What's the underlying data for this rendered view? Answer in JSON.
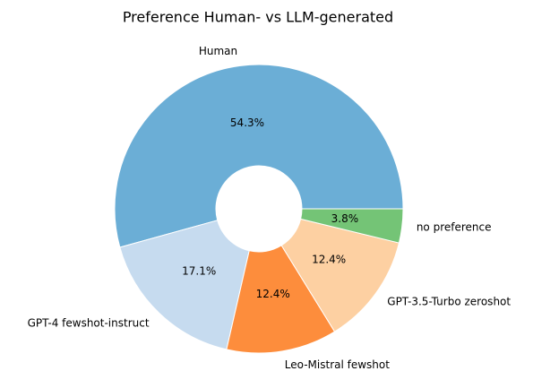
{
  "chart_data": {
    "type": "pie",
    "title": "Preference Human- vs LLM-generated",
    "categories": [
      "Human",
      "GPT-4 fewshot-instruct",
      "Leo-Mistral fewshot",
      "GPT-3.5-Turbo zeroshot",
      "no preference"
    ],
    "values": [
      54.3,
      17.1,
      12.4,
      12.4,
      3.8
    ],
    "value_labels": [
      "54.3%",
      "17.1%",
      "12.4%",
      "12.4%",
      "3.8%"
    ],
    "colors": [
      "#6baed6",
      "#c6dbef",
      "#fd8d3c",
      "#fdd0a2",
      "#74c476"
    ]
  }
}
